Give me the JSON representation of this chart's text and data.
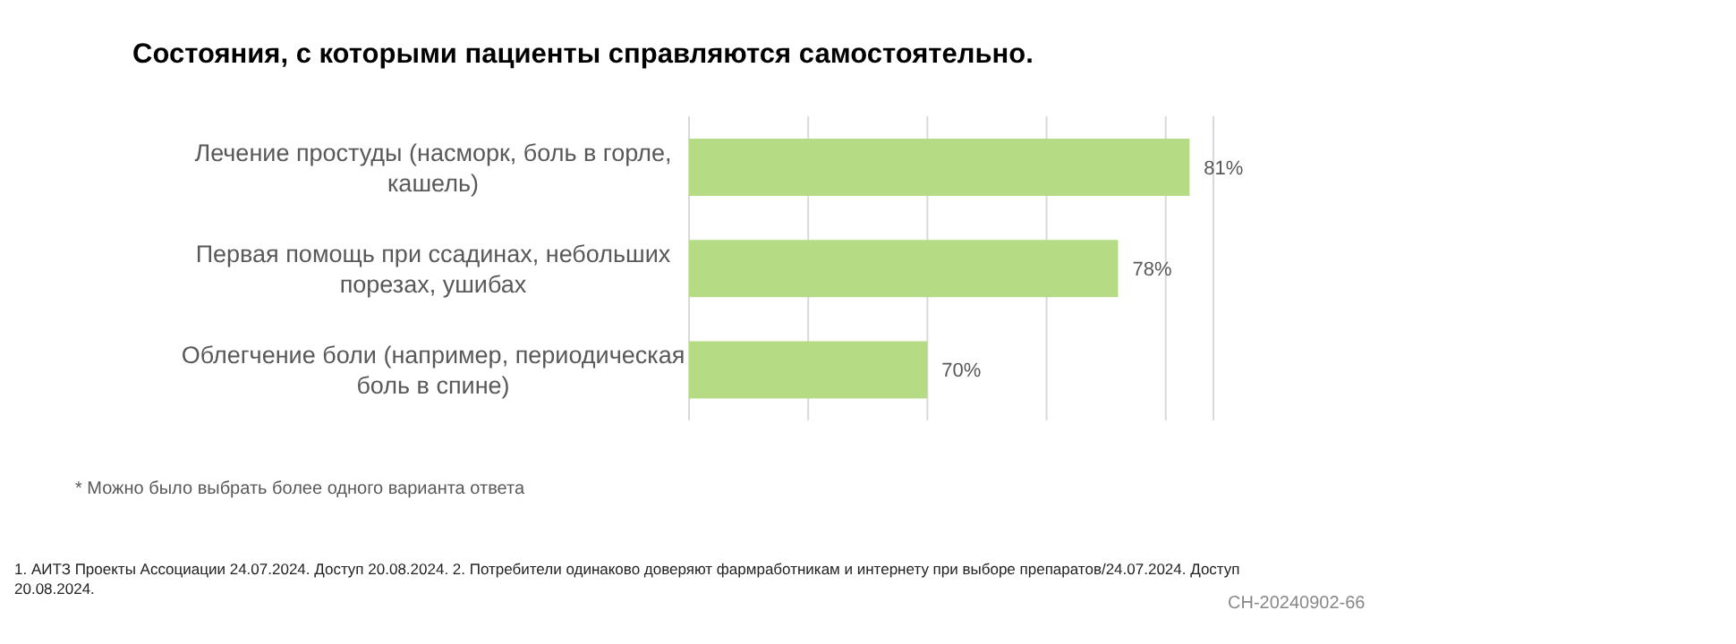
{
  "chart_data": {
    "type": "bar",
    "orientation": "horizontal",
    "title": "Состояния, с которыми пациенты справляются самостоятельно.",
    "categories": [
      "Лечение простуды (насморк, боль в горле, кашель)",
      "Первая помощь при ссадинах, небольших порезах, ушибах",
      "Облегчение боли (например, периодическая боль в спине)"
    ],
    "values": [
      81,
      78,
      70
    ],
    "value_labels": [
      "81%",
      "78%",
      "70%"
    ],
    "color": "#b5dc84",
    "xlim": [
      60,
      82
    ],
    "xticks": [
      {
        "value": 60,
        "label": null
      },
      {
        "value": 65,
        "label": null
      },
      {
        "value": 70,
        "label": null
      },
      {
        "value": 75,
        "label": null
      },
      {
        "value": 80,
        "label": null
      }
    ],
    "grid": "x",
    "tick_labels": "y",
    "annotations": [
      "* Можно было выбрать более одного варианта ответа",
      "1. АИТЗ Проекты Ассоциации 24.07.2024. Доступ 20.08.2024. 2. Потребители одинаково доверяют фармработникам и интернету при выборе препаратов/24.07.2024. Доступ 20.08.2024.",
      "CH-20240902-66"
    ]
  }
}
